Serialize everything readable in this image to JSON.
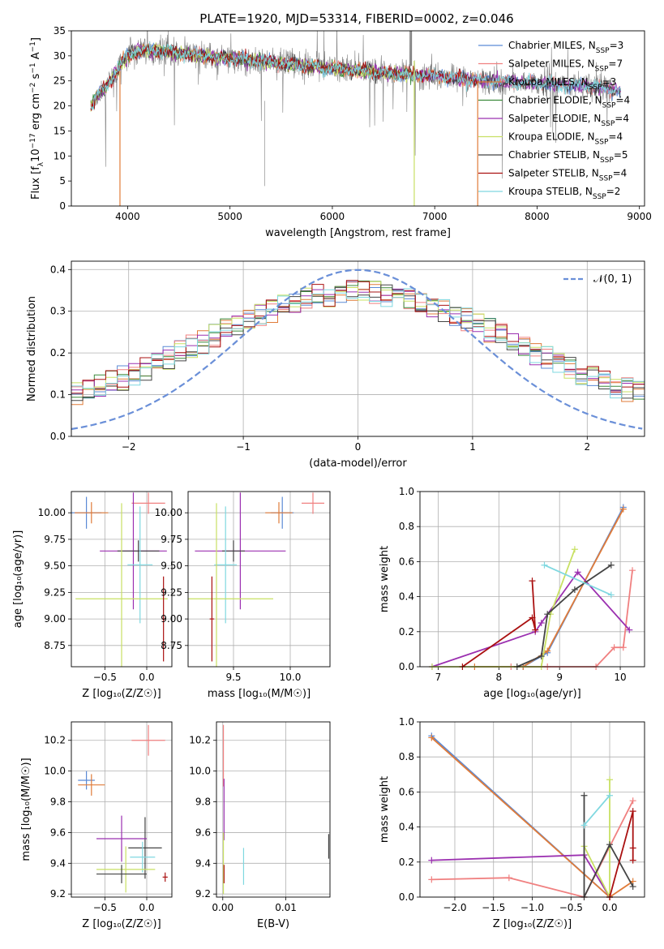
{
  "figure_title": "PLATE=1920, MJD=53314, FIBERID=0002, z=0.046",
  "series_styles": [
    {
      "name": "Chabrier MILES",
      "color": "#5b8ad6"
    },
    {
      "name": "Salpeter MILES",
      "color": "#f08080"
    },
    {
      "name": "Kroupa MILES",
      "color": "#e07b39"
    },
    {
      "name": "Chabrier ELODIE",
      "color": "#3c8a3c"
    },
    {
      "name": "Salpeter ELODIE",
      "color": "#9b30b0"
    },
    {
      "name": "Kroupa ELODIE",
      "color": "#c8e063"
    },
    {
      "name": "Chabrier STELIB",
      "color": "#444444"
    },
    {
      "name": "Salpeter STELIB",
      "color": "#aa1111"
    },
    {
      "name": "Kroupa STELIB",
      "color": "#7fd8e0"
    }
  ],
  "chart_data": [
    {
      "id": "spectrum",
      "type": "line",
      "title": "PLATE=1920, MJD=53314, FIBERID=0002, z=0.046",
      "xlabel": "wavelength [Angstrom, rest frame]",
      "ylabel": "Flux [f_λ 10^-17 erg cm^-2 s^-1 A^-1]",
      "xlim": [
        3450,
        9050
      ],
      "ylim": [
        0,
        35
      ],
      "xticks": [
        4000,
        5000,
        6000,
        7000,
        8000,
        9000
      ],
      "yticks": [
        0,
        5,
        10,
        15,
        20,
        25,
        30,
        35
      ],
      "legend_position": "top-right",
      "legend": [
        {
          "label": "Chabrier MILES, N_SSP=3",
          "color": "#5b8ad6"
        },
        {
          "label": "Salpeter MILES, N_SSP=7",
          "color": "#f08080"
        },
        {
          "label": "Kroupa MILES, N_SSP=3",
          "color": "#e07b39"
        },
        {
          "label": "Chabrier ELODIE, N_SSP=4",
          "color": "#3c8a3c"
        },
        {
          "label": "Salpeter ELODIE, N_SSP=4",
          "color": "#9b30b0"
        },
        {
          "label": "Kroupa ELODIE, N_SSP=4",
          "color": "#c8e063"
        },
        {
          "label": "Chabrier STELIB, N_SSP=5",
          "color": "#444444"
        },
        {
          "label": "Salpeter STELIB, N_SSP=4",
          "color": "#aa1111"
        },
        {
          "label": "Kroupa STELIB, N_SSP=2",
          "color": "#7fd8e0"
        }
      ],
      "continuum": [
        [
          3650,
          20
        ],
        [
          3700,
          22
        ],
        [
          3800,
          24
        ],
        [
          3900,
          27
        ],
        [
          3950,
          29
        ],
        [
          4000,
          30
        ],
        [
          4100,
          31
        ],
        [
          4300,
          31
        ],
        [
          4500,
          30.5
        ],
        [
          5000,
          29.5
        ],
        [
          5500,
          28.5
        ],
        [
          6000,
          27.5
        ],
        [
          6500,
          26.5
        ],
        [
          7000,
          26
        ],
        [
          7500,
          25
        ],
        [
          8000,
          24.5
        ],
        [
          8500,
          24
        ],
        [
          8800,
          23
        ]
      ],
      "series_ranges": [
        [
          3640,
          8820
        ],
        [
          3640,
          8820
        ],
        [
          3640,
          7420
        ],
        [
          3640,
          6800
        ],
        [
          3640,
          8820
        ],
        [
          3640,
          6800
        ],
        [
          3640,
          8820
        ],
        [
          3640,
          7420
        ],
        [
          3640,
          8820
        ]
      ],
      "data_range": [
        3650,
        8750
      ]
    },
    {
      "id": "residuals",
      "type": "histogram",
      "xlabel": "(data-model)/error",
      "ylabel": "Normed distribution",
      "xlim": [
        -2.5,
        2.5
      ],
      "ylim": [
        0,
        0.42
      ],
      "xticks": [
        -2,
        -1,
        0,
        1,
        2
      ],
      "yticks": [
        0.0,
        0.1,
        0.2,
        0.3,
        0.4
      ],
      "xtick_labels": [
        "−2",
        "−1",
        "0",
        "1",
        "2"
      ],
      "ytick_labels": [
        "0.0",
        "0.1",
        "0.2",
        "0.3",
        "0.4"
      ],
      "legend": [
        {
          "label": "𝒩(0, 1)",
          "color": "#6a8fd8",
          "style": "dashed"
        }
      ],
      "legend_position": "top-right",
      "bin_width": 0.1
    },
    {
      "id": "age_vs_Z",
      "type": "errorbar",
      "xlabel": "Z [log₁₀(Z/Z☉)]",
      "ylabel": "age  [log₁₀(age/yr)]",
      "xlim": [
        -0.9,
        0.3
      ],
      "ylim": [
        8.55,
        10.2
      ],
      "xticks": [
        -0.5,
        0.0
      ],
      "xtick_labels": [
        "−0.5",
        "0.0"
      ],
      "yticks": [
        8.75,
        9.0,
        9.25,
        9.5,
        9.75,
        10.0
      ],
      "ytick_labels": [
        "8.75",
        "9.00",
        "9.25",
        "9.50",
        "9.75",
        "10.00"
      ],
      "points": [
        {
          "s": 0,
          "x": -0.72,
          "xerr": 0.18,
          "y": 10.0,
          "yerr": 0.15
        },
        {
          "s": 2,
          "x": -0.66,
          "xerr": 0.2,
          "y": 10.0,
          "yerr": 0.1
        },
        {
          "s": 1,
          "x": 0.02,
          "xerr": 0.2,
          "y": 10.09,
          "yerr": 0.1
        },
        {
          "s": 4,
          "x": -0.16,
          "xerr": 0.4,
          "y": 9.64,
          "yerr": 0.55
        },
        {
          "s": 6,
          "x": -0.1,
          "xerr": 0.25,
          "y": 9.64,
          "yerr": 0.1
        },
        {
          "s": 8,
          "x": -0.08,
          "xerr": 0.15,
          "y": 9.51,
          "yerr": 0.55
        },
        {
          "s": 5,
          "x": -0.3,
          "xerr": 0.55,
          "y": 9.19,
          "yerr": 0.9
        },
        {
          "s": 7,
          "x": 0.2,
          "xerr": 0.02,
          "y": 9.0,
          "yerr": 0.4
        }
      ]
    },
    {
      "id": "age_vs_mass",
      "type": "errorbar",
      "xlabel": "mass [log₁₀(M/M☉)]",
      "ylabel": "",
      "xlim": [
        9.1,
        10.35
      ],
      "ylim": [
        8.55,
        10.2
      ],
      "xticks": [
        9.5,
        10.0
      ],
      "xtick_labels": [
        "9.5",
        "10.0"
      ],
      "yticks": [
        8.75,
        9.0,
        9.25,
        9.5,
        9.75,
        10.0
      ],
      "ytick_labels": [
        "8.75",
        "9.00",
        "9.25",
        "9.50",
        "9.75",
        "10.00"
      ],
      "points": [
        {
          "s": 1,
          "x": 10.2,
          "xerr": 0.1,
          "y": 10.09,
          "yerr": 0.1
        },
        {
          "s": 0,
          "x": 9.93,
          "xerr": 0.1,
          "y": 10.0,
          "yerr": 0.15
        },
        {
          "s": 2,
          "x": 9.9,
          "xerr": 0.12,
          "y": 10.0,
          "yerr": 0.1
        },
        {
          "s": 4,
          "x": 9.56,
          "xerr": 0.4,
          "y": 9.64,
          "yerr": 0.55
        },
        {
          "s": 6,
          "x": 9.5,
          "xerr": 0.1,
          "y": 9.64,
          "yerr": 0.1
        },
        {
          "s": 8,
          "x": 9.43,
          "xerr": 0.1,
          "y": 9.51,
          "yerr": 0.55
        },
        {
          "s": 5,
          "x": 9.35,
          "xerr": 0.5,
          "y": 9.19,
          "yerr": 0.9
        },
        {
          "s": 7,
          "x": 9.31,
          "xerr": 0.02,
          "y": 9.0,
          "yerr": 0.4
        }
      ]
    },
    {
      "id": "weight_vs_age",
      "type": "line",
      "xlabel": "age  [log₁₀(age/yr)]",
      "ylabel": "mass weight",
      "xlim": [
        6.7,
        10.4
      ],
      "ylim": [
        0,
        1
      ],
      "xticks": [
        7,
        8,
        9,
        10
      ],
      "xtick_labels": [
        "7",
        "8",
        "9",
        "10"
      ],
      "yticks": [
        0,
        0.2,
        0.4,
        0.6,
        0.8,
        1.0
      ],
      "ytick_labels": [
        "0.0",
        "0.2",
        "0.4",
        "0.6",
        "0.8",
        "1.0"
      ],
      "series": [
        {
          "s": 0,
          "x": [
            10.05,
            8.8,
            8.4
          ],
          "y": [
            0.91,
            0.08,
            0.0
          ]
        },
        {
          "s": 2,
          "x": [
            10.05,
            8.8,
            8.4,
            7.6
          ],
          "y": [
            0.9,
            0.09,
            0.0,
            0.0
          ]
        },
        {
          "s": 1,
          "x": [
            10.2,
            10.05,
            9.9,
            9.6,
            8.8,
            8.2
          ],
          "y": [
            0.55,
            0.11,
            0.11,
            0.0,
            0.0,
            0.0
          ]
        },
        {
          "s": 4,
          "x": [
            6.9,
            8.6,
            8.7,
            9.3,
            10.15
          ],
          "y": [
            0.0,
            0.2,
            0.25,
            0.54,
            0.21
          ]
        },
        {
          "s": 5,
          "x": [
            6.9,
            8.7,
            8.85,
            9.25
          ],
          "y": [
            0.0,
            0.0,
            0.3,
            0.67
          ]
        },
        {
          "s": 6,
          "x": [
            8.3,
            8.7,
            8.8,
            9.25,
            9.85
          ],
          "y": [
            0.0,
            0.06,
            0.3,
            0.44,
            0.58
          ]
        },
        {
          "s": 7,
          "x": [
            7.4,
            8.55,
            8.6,
            8.55
          ],
          "y": [
            0.0,
            0.28,
            0.21,
            0.49
          ]
        },
        {
          "s": 8,
          "x": [
            8.75,
            9.85
          ],
          "y": [
            0.58,
            0.41
          ]
        }
      ]
    },
    {
      "id": "mass_vs_Z",
      "type": "errorbar",
      "xlabel": "Z [log₁₀(Z/Z☉)]",
      "ylabel": "mass [log₁₀(M/M☉)]",
      "xlim": [
        -0.9,
        0.3
      ],
      "ylim": [
        9.18,
        10.32
      ],
      "xticks": [
        -0.5,
        0.0
      ],
      "xtick_labels": [
        "−0.5",
        "0.0"
      ],
      "yticks": [
        9.2,
        9.4,
        9.6,
        9.8,
        10.0,
        10.2
      ],
      "ytick_labels": [
        "9.2",
        "9.4",
        "9.6",
        "9.8",
        "10.0",
        "10.2"
      ],
      "points": [
        {
          "s": 1,
          "x": 0.02,
          "xerr": 0.2,
          "y": 10.2,
          "yerr": 0.1
        },
        {
          "s": 0,
          "x": -0.72,
          "xerr": 0.1,
          "y": 9.94,
          "yerr": 0.06
        },
        {
          "s": 2,
          "x": -0.66,
          "xerr": 0.16,
          "y": 9.91,
          "yerr": 0.07
        },
        {
          "s": 6,
          "x": -0.02,
          "xerr": 0.2,
          "y": 9.5,
          "yerr": 0.2
        },
        {
          "s": 4,
          "x": -0.3,
          "xerr": 0.3,
          "y": 9.56,
          "yerr": 0.15
        },
        {
          "s": 8,
          "x": -0.05,
          "xerr": 0.15,
          "y": 9.44,
          "yerr": 0.1
        },
        {
          "s": 5,
          "x": -0.25,
          "xerr": 0.35,
          "y": 9.36,
          "yerr": 0.15
        },
        {
          "s": 6,
          "x": -0.3,
          "xerr": 0.3,
          "y": 9.33,
          "yerr": 0.06
        },
        {
          "s": 7,
          "x": 0.22,
          "xerr": 0.03,
          "y": 9.31,
          "yerr": 0.03
        }
      ]
    },
    {
      "id": "mass_vs_EBV",
      "type": "errorbar",
      "xlabel": "E(B-V)",
      "ylabel": "",
      "xlim": [
        -0.001,
        0.017
      ],
      "ylim": [
        9.18,
        10.32
      ],
      "xticks": [
        0.0,
        0.01
      ],
      "xtick_labels": [
        "0.00",
        "0.01"
      ],
      "yticks": [
        9.2,
        9.4,
        9.6,
        9.8,
        10.0,
        10.2
      ],
      "ytick_labels": [
        "9.2",
        "9.4",
        "9.6",
        "9.8",
        "10.0",
        "10.2"
      ],
      "points": [
        {
          "s": 1,
          "x": 0.0001,
          "xerr": 0,
          "y": 10.1,
          "yerr": 0.2
        },
        {
          "s": 4,
          "x": 0.0002,
          "xerr": 0,
          "y": 9.75,
          "yerr": 0.2
        },
        {
          "s": 5,
          "x": 0.0001,
          "xerr": 0,
          "y": 9.4,
          "yerr": 0.2
        },
        {
          "s": 7,
          "x": 0.0002,
          "xerr": 0,
          "y": 9.33,
          "yerr": 0.06
        },
        {
          "s": 8,
          "x": 0.0033,
          "xerr": 0,
          "y": 9.38,
          "yerr": 0.12
        },
        {
          "s": 6,
          "x": 0.0168,
          "xerr": 0,
          "y": 9.51,
          "yerr": 0.08
        }
      ]
    },
    {
      "id": "weight_vs_Z",
      "type": "line",
      "xlabel": "Z [log₁₀(Z/Z☉)]",
      "ylabel": "mass weight",
      "xlim": [
        -2.45,
        0.45
      ],
      "ylim": [
        0,
        1
      ],
      "xticks": [
        -2.0,
        -1.5,
        -1.0,
        -0.5,
        0.0
      ],
      "xtick_labels": [
        "−2.0",
        "−1.5",
        "−1.0",
        "−0.5",
        "0.0"
      ],
      "yticks": [
        0,
        0.2,
        0.4,
        0.6,
        0.8,
        1.0
      ],
      "ytick_labels": [
        "0.0",
        "0.2",
        "0.4",
        "0.6",
        "0.8",
        "1.0"
      ],
      "series": [
        {
          "s": 0,
          "x": [
            -2.3,
            0.0
          ],
          "y": [
            0.92,
            0.0
          ]
        },
        {
          "s": 2,
          "x": [
            -2.3,
            0.0,
            0.3
          ],
          "y": [
            0.91,
            0.0,
            0.09
          ]
        },
        {
          "s": 1,
          "x": [
            -2.3,
            -1.3,
            -0.33,
            0.3
          ],
          "y": [
            0.1,
            0.11,
            0.0,
            0.55
          ]
        },
        {
          "s": 4,
          "x": [
            -2.3,
            -0.33,
            0.0
          ],
          "y": [
            0.21,
            0.24,
            0.0
          ]
        },
        {
          "s": 5,
          "x": [
            -0.33,
            0.0,
            0.0
          ],
          "y": [
            0.29,
            0.0,
            0.67
          ]
        },
        {
          "s": 6,
          "x": [
            -0.33,
            -0.33,
            0.0,
            0.3
          ],
          "y": [
            0.58,
            0.0,
            0.3,
            0.06
          ]
        },
        {
          "s": 7,
          "x": [
            0.0,
            0.3,
            0.3,
            0.3
          ],
          "y": [
            0.0,
            0.49,
            0.28,
            0.21
          ]
        },
        {
          "s": 8,
          "x": [
            -0.33,
            0.0
          ],
          "y": [
            0.41,
            0.58
          ]
        }
      ]
    }
  ]
}
